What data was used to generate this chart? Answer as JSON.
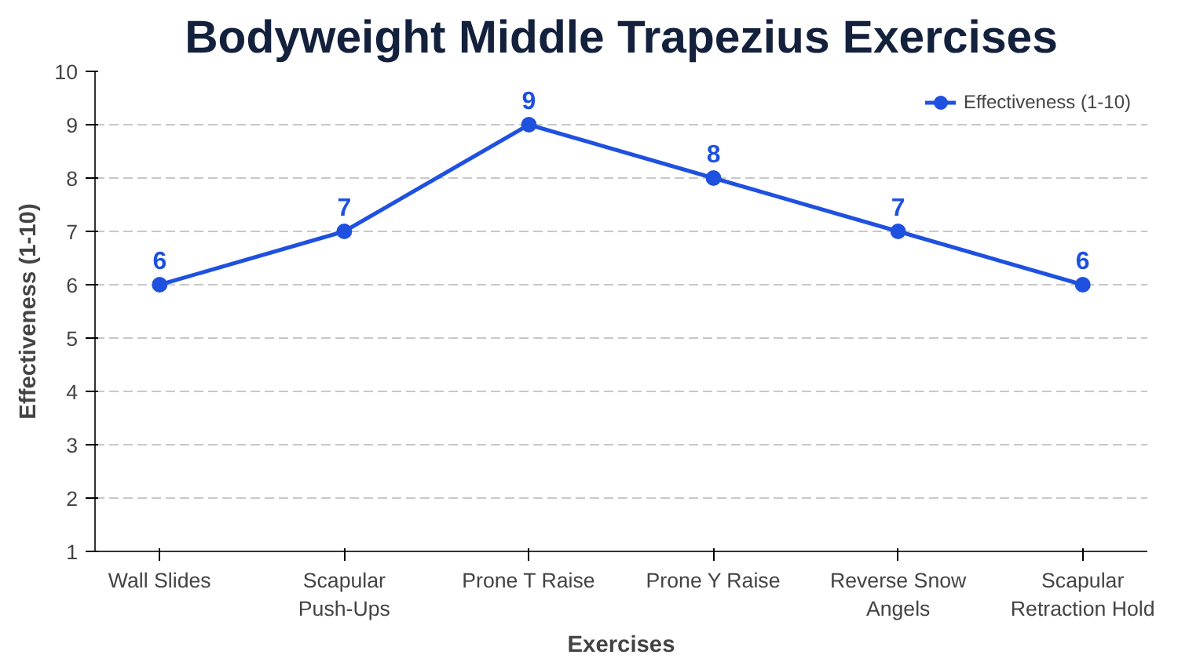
{
  "chart_data": {
    "type": "line",
    "title": "Bodyweight Middle Trapezius Exercises",
    "xlabel": "Exercises",
    "ylabel": "Effectiveness (1-10)",
    "categories": [
      "Wall Slides",
      "Scapular Push-Ups",
      "Prone T Raise",
      "Prone Y Raise",
      "Reverse Snow Angels",
      "Scapular Retraction Hold"
    ],
    "series": [
      {
        "name": "Effectiveness (1-10)",
        "color": "#1f51e0",
        "values": [
          6,
          7,
          9,
          8,
          7,
          6
        ]
      }
    ],
    "ylim": [
      1,
      10
    ],
    "yticks": [
      1,
      2,
      3,
      4,
      5,
      6,
      7,
      8,
      9,
      10
    ],
    "grid": "y",
    "legend": "top right",
    "marker": "circle",
    "line_style": "solid",
    "data_labels": true
  }
}
